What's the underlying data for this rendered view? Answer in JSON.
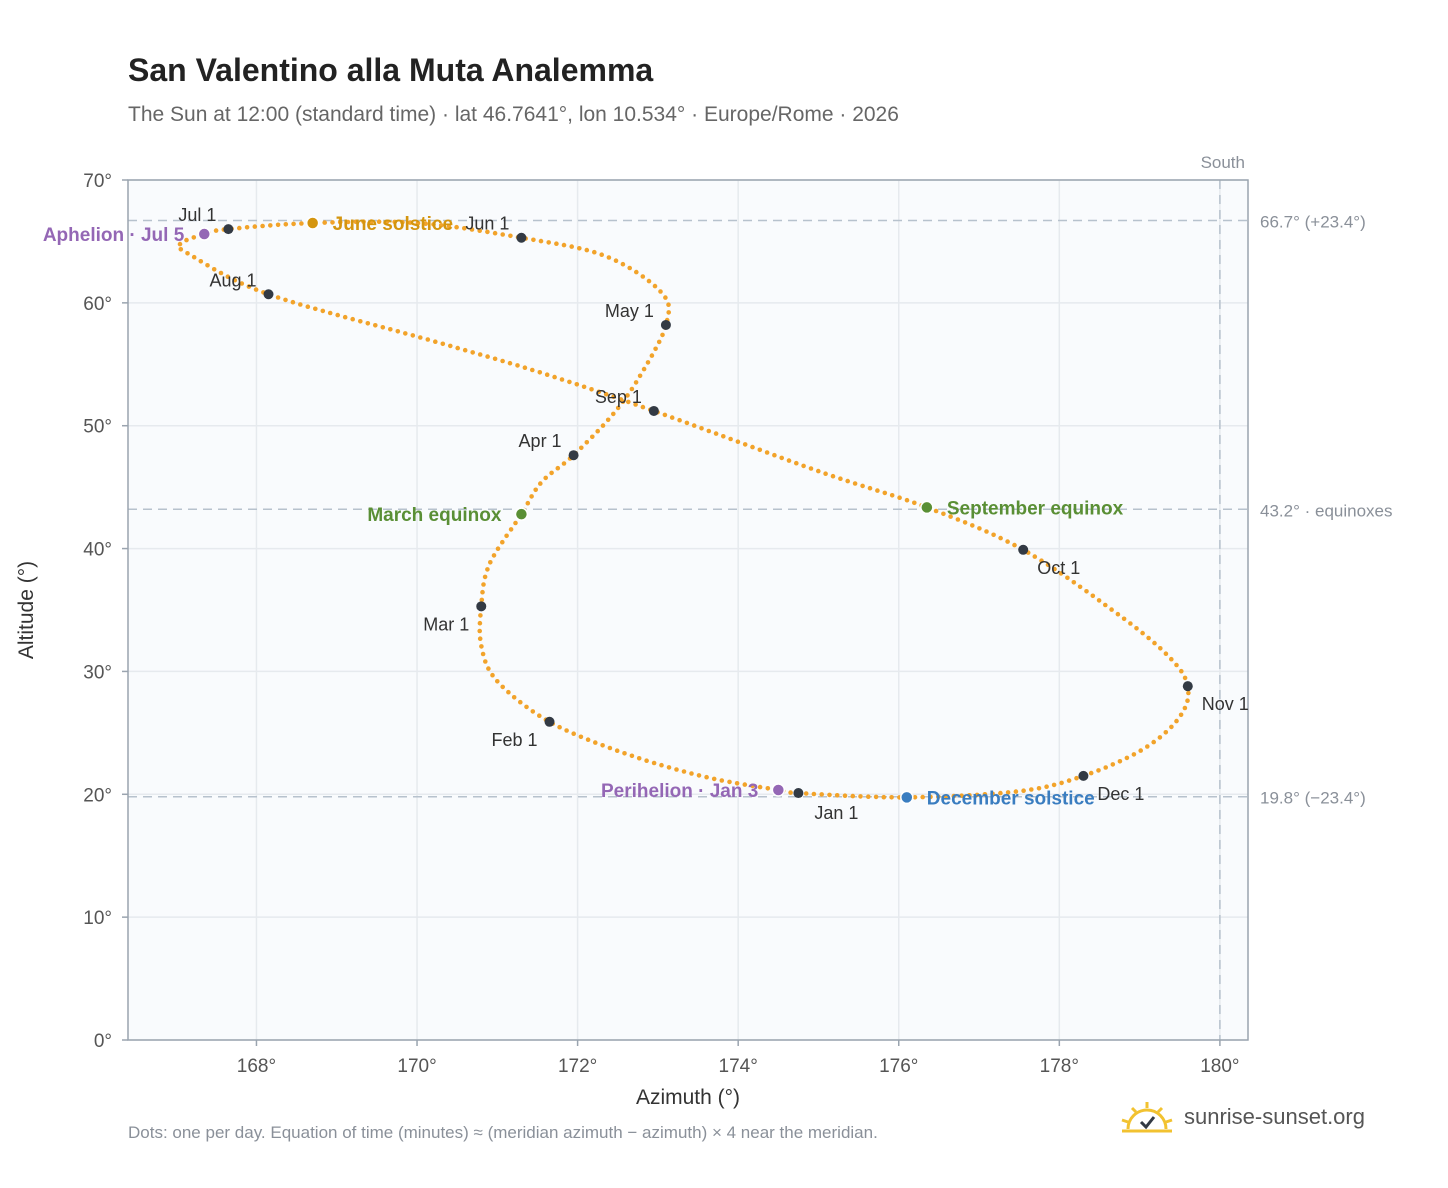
{
  "title": "San Valentino alla Muta Analemma",
  "subtitle": "The Sun at 12:00 (standard time) · lat 46.7641°, lon 10.534° · Europe/Rome · 2026",
  "footnote": "Dots: one per day. Equation of time (minutes) ≈ (meridian azimuth − azimuth) × 4 near the meridian.",
  "brand": {
    "name": "sunrise-sunset.org",
    "logo_icon": "sun-check-icon"
  },
  "colors": {
    "curve": "#f2a32a",
    "month_marker": "#333a44",
    "equinox": "#5a8f35",
    "june_solstice": "#d4950f",
    "december_solstice": "#3a7dc0",
    "apsis": "#9467b5",
    "reference_line": "#b7c2cd",
    "grid": "#e6eaee",
    "plot_bg": "#f9fbfd",
    "axis": "#9aa4af"
  },
  "chart_data": {
    "type": "scatter",
    "xlabel": "Azimuth (°)",
    "ylabel": "Altitude (°)",
    "xlim": [
      166.4,
      180.35
    ],
    "ylim": [
      0,
      70
    ],
    "xticks": [
      168,
      170,
      172,
      174,
      176,
      178,
      180
    ],
    "yticks": [
      0,
      10,
      20,
      30,
      40,
      50,
      60,
      70
    ],
    "tick_suffix": "°",
    "grid": true,
    "south_line": {
      "azimuth": 180,
      "label": "South"
    },
    "reference_lines": [
      {
        "altitude": 66.7,
        "label": "66.7° (+23.4°)"
      },
      {
        "altitude": 43.2,
        "label": "43.2° · equinoxes"
      },
      {
        "altitude": 19.8,
        "label": "19.8° (−23.4°)"
      }
    ],
    "analemma_path": [
      [
        174.75,
        20.1
      ],
      [
        176.1,
        19.75
      ],
      [
        177.5,
        20.25
      ],
      [
        178.3,
        21.5
      ],
      [
        179.05,
        23.7
      ],
      [
        179.5,
        26.3
      ],
      [
        179.6,
        28.8
      ],
      [
        179.35,
        31.3
      ],
      [
        178.7,
        34.8
      ],
      [
        177.55,
        39.9
      ],
      [
        176.35,
        43.35
      ],
      [
        175.0,
        46.3
      ],
      [
        172.95,
        51.2
      ],
      [
        171.55,
        54.3
      ],
      [
        170.25,
        56.8
      ],
      [
        168.15,
        60.7
      ],
      [
        167.15,
        64.0
      ],
      [
        167.05,
        64.8
      ],
      [
        167.35,
        65.6
      ],
      [
        167.65,
        66.0
      ],
      [
        168.7,
        66.5
      ],
      [
        170.0,
        66.5
      ],
      [
        171.3,
        65.3
      ],
      [
        172.35,
        63.8
      ],
      [
        173.05,
        60.8
      ],
      [
        173.1,
        58.2
      ],
      [
        172.8,
        54.3
      ],
      [
        172.45,
        51.0
      ],
      [
        171.95,
        47.6
      ],
      [
        171.55,
        45.4
      ],
      [
        171.3,
        42.8
      ],
      [
        170.9,
        38.7
      ],
      [
        170.8,
        35.3
      ],
      [
        170.8,
        32.1
      ],
      [
        171.0,
        29.2
      ],
      [
        171.65,
        25.9
      ],
      [
        172.6,
        23.3
      ],
      [
        173.6,
        21.4
      ],
      [
        174.5,
        20.35
      ],
      [
        174.75,
        20.1
      ]
    ],
    "month_markers": [
      {
        "label": "Jan 1",
        "azimuth": 174.75,
        "altitude": 20.1,
        "anchor": "below"
      },
      {
        "label": "Feb 1",
        "azimuth": 171.65,
        "altitude": 25.9,
        "anchor": "below-left"
      },
      {
        "label": "Mar 1",
        "azimuth": 170.8,
        "altitude": 35.3,
        "anchor": "below-left"
      },
      {
        "label": "Apr 1",
        "azimuth": 171.95,
        "altitude": 47.6,
        "anchor": "above-left"
      },
      {
        "label": "May 1",
        "azimuth": 173.1,
        "altitude": 58.2,
        "anchor": "above-left"
      },
      {
        "label": "Jun 1",
        "azimuth": 171.3,
        "altitude": 65.3,
        "anchor": "above-left"
      },
      {
        "label": "Jul 1",
        "azimuth": 167.65,
        "altitude": 66.0,
        "anchor": "above-left"
      },
      {
        "label": "Aug 1",
        "azimuth": 168.15,
        "altitude": 60.7,
        "anchor": "above-left"
      },
      {
        "label": "Sep 1",
        "azimuth": 172.95,
        "altitude": 51.2,
        "anchor": "above-left"
      },
      {
        "label": "Oct 1",
        "azimuth": 177.55,
        "altitude": 39.9,
        "anchor": "below-right"
      },
      {
        "label": "Nov 1",
        "azimuth": 179.6,
        "altitude": 28.8,
        "anchor": "below-right"
      },
      {
        "label": "Dec 1",
        "azimuth": 178.3,
        "altitude": 21.5,
        "anchor": "below-right"
      }
    ],
    "events": [
      {
        "label": "March equinox",
        "azimuth": 171.3,
        "altitude": 42.8,
        "color_key": "equinox",
        "side": "left"
      },
      {
        "label": "September equinox",
        "azimuth": 176.35,
        "altitude": 43.35,
        "color_key": "equinox",
        "side": "right"
      },
      {
        "label": "June solstice",
        "azimuth": 168.7,
        "altitude": 66.5,
        "color_key": "june_solstice",
        "side": "right"
      },
      {
        "label": "December solstice",
        "azimuth": 176.1,
        "altitude": 19.75,
        "color_key": "december_solstice",
        "side": "right"
      },
      {
        "label": "Aphelion · Jul 5",
        "azimuth": 167.35,
        "altitude": 65.6,
        "color_key": "apsis",
        "side": "left"
      },
      {
        "label": "Perihelion · Jan 3",
        "azimuth": 174.5,
        "altitude": 20.35,
        "color_key": "apsis",
        "side": "left"
      }
    ]
  }
}
